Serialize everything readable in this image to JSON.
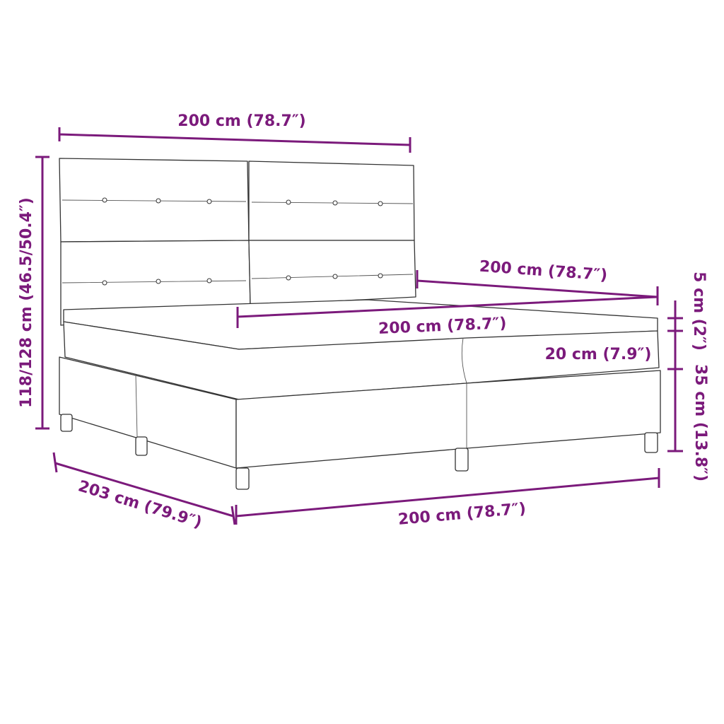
{
  "accent_color": "#7b1a7b",
  "dimensions": {
    "headboard_width": "200 cm (78.7″)",
    "total_height": "118/128 cm (46.5/50.4″)",
    "mattress_width_back": "200 cm (78.7″)",
    "mattress_width_front": "200 cm (78.7″)",
    "topper_height": "5 cm (2″)",
    "mattress_height": "20 cm (7.9″)",
    "base_height": "35 cm (13.8″)",
    "length": "203 cm (79.9″)",
    "base_width": "200 cm (78.7″)"
  }
}
